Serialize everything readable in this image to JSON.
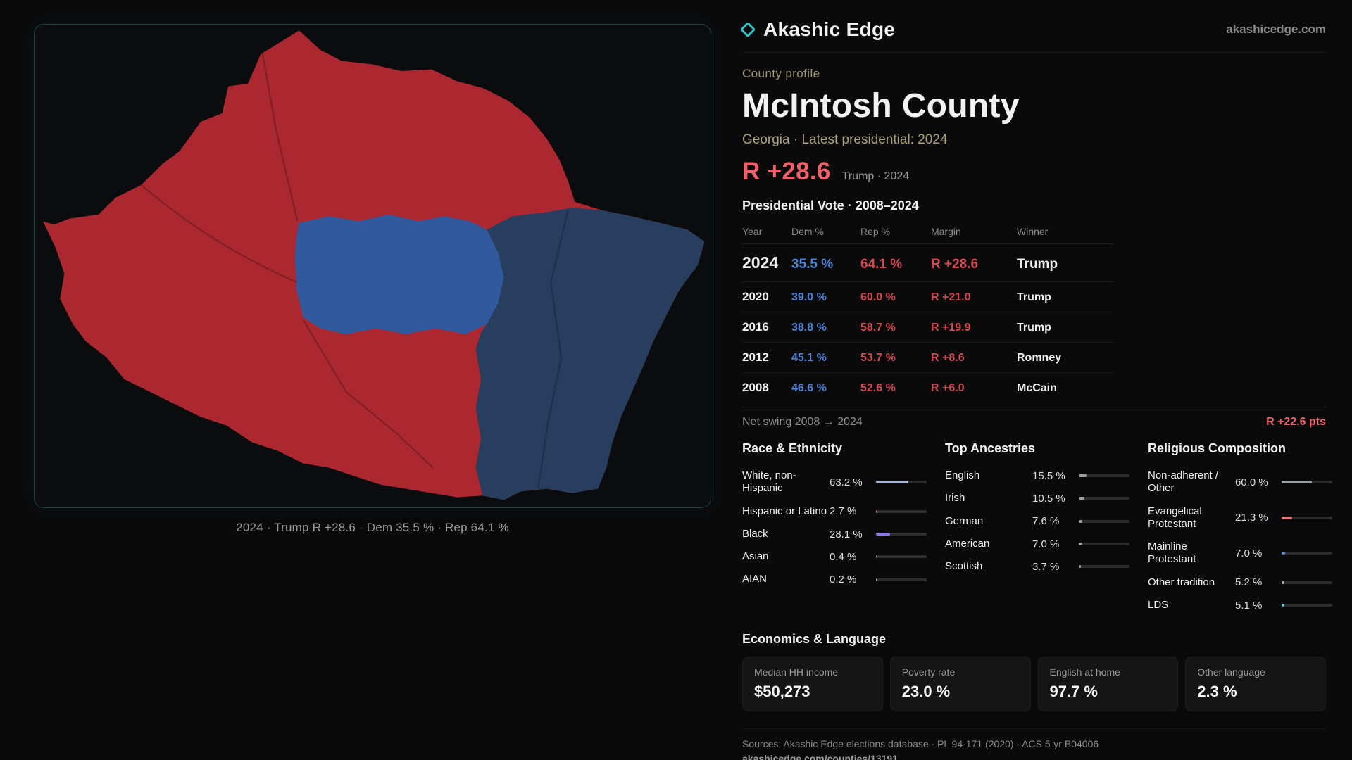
{
  "brand": {
    "name": "Akashic Edge",
    "domain": "akashicedge.com"
  },
  "colors": {
    "accent_teal": "#2fc6c6",
    "accent_red": "#f2606a",
    "dem_blue": "#4d82d6",
    "rep_red": "#d4494f",
    "map_rep_red": "#ab2830",
    "map_dem_blue": "#31599e",
    "map_dem_dark_blue": "#273e5f"
  },
  "map": {
    "caption": "2024 · Trump R +28.6 · Dem 35.5 % · Rep 64.1 %"
  },
  "profile": {
    "kicker": "County profile",
    "title": "McIntosh County",
    "subtitle": "Georgia · Latest presidential: 2024",
    "margin_big": "R +28.6",
    "margin_note": "Trump · 2024"
  },
  "vote_table": {
    "title": "Presidential Vote · 2008–2024",
    "headers": [
      "Year",
      "Dem %",
      "Rep %",
      "Margin",
      "Winner"
    ],
    "rows": [
      {
        "year": "2024",
        "dem": "35.5 %",
        "rep": "64.1 %",
        "margin": "R +28.6",
        "winner": "Trump"
      },
      {
        "year": "2020",
        "dem": "39.0 %",
        "rep": "60.0 %",
        "margin": "R +21.0",
        "winner": "Trump"
      },
      {
        "year": "2016",
        "dem": "38.8 %",
        "rep": "58.7 %",
        "margin": "R +19.9",
        "winner": "Trump"
      },
      {
        "year": "2012",
        "dem": "45.1 %",
        "rep": "53.7 %",
        "margin": "R +8.6",
        "winner": "Romney"
      },
      {
        "year": "2008",
        "dem": "46.6 %",
        "rep": "52.6 %",
        "margin": "R +6.0",
        "winner": "McCain"
      }
    ],
    "net_swing_label": "Net swing 2008 → 2024",
    "net_swing_value": "R +22.6 pts"
  },
  "demographics": {
    "race": {
      "title": "Race & Ethnicity",
      "rows": [
        {
          "label": "White, non-Hispanic",
          "value": "63.2 %",
          "pct": 63.2,
          "color": "#a9b4cd"
        },
        {
          "label": "Hispanic or Latino",
          "value": "2.7 %",
          "pct": 2.7,
          "color": "#e0993c"
        },
        {
          "label": "Black",
          "value": "28.1 %",
          "pct": 28.1,
          "color": "#8d7ae0"
        },
        {
          "label": "Asian",
          "value": "0.4 %",
          "pct": 0.4,
          "color": "#bdbdbd"
        },
        {
          "label": "AIAN",
          "value": "0.2 %",
          "pct": 0.2,
          "color": "#bdbdbd"
        }
      ]
    },
    "ancestries": {
      "title": "Top Ancestries",
      "rows": [
        {
          "label": "English",
          "value": "15.5 %",
          "pct": 15.5,
          "color": "#9aa0a6"
        },
        {
          "label": "Irish",
          "value": "10.5 %",
          "pct": 10.5,
          "color": "#9aa0a6"
        },
        {
          "label": "German",
          "value": "7.6 %",
          "pct": 7.6,
          "color": "#9aa0a6"
        },
        {
          "label": "American",
          "value": "7.0 %",
          "pct": 7.0,
          "color": "#9aa0a6"
        },
        {
          "label": "Scottish",
          "value": "3.7 %",
          "pct": 3.7,
          "color": "#9aa0a6"
        }
      ]
    },
    "religion": {
      "title": "Religious Composition",
      "rows": [
        {
          "label": "Non-adherent / Other",
          "value": "60.0 %",
          "pct": 60.0,
          "color": "#9aa0a6"
        },
        {
          "label": "Evangelical Protestant",
          "value": "21.3 %",
          "pct": 21.3,
          "color": "#e5737b"
        },
        {
          "label": "Mainline Protestant",
          "value": "7.0 %",
          "pct": 7.0,
          "color": "#5b8ede"
        },
        {
          "label": "Other tradition",
          "value": "5.2 %",
          "pct": 5.2,
          "color": "#b0b0b0"
        },
        {
          "label": "LDS",
          "value": "5.1 %",
          "pct": 5.1,
          "color": "#3fc8d2"
        }
      ]
    }
  },
  "economics": {
    "title": "Economics & Language",
    "stats": [
      {
        "label": "Median HH income",
        "value": "$50,273"
      },
      {
        "label": "Poverty rate",
        "value": "23.0 %"
      },
      {
        "label": "English at home",
        "value": "97.7 %"
      },
      {
        "label": "Other language",
        "value": "2.3 %"
      }
    ]
  },
  "footer": {
    "sources": "Sources: Akashic Edge elections database · PL 94-171 (2020) · ACS 5-yr B04006",
    "permalink": "akashicedge.com/counties/13191"
  }
}
